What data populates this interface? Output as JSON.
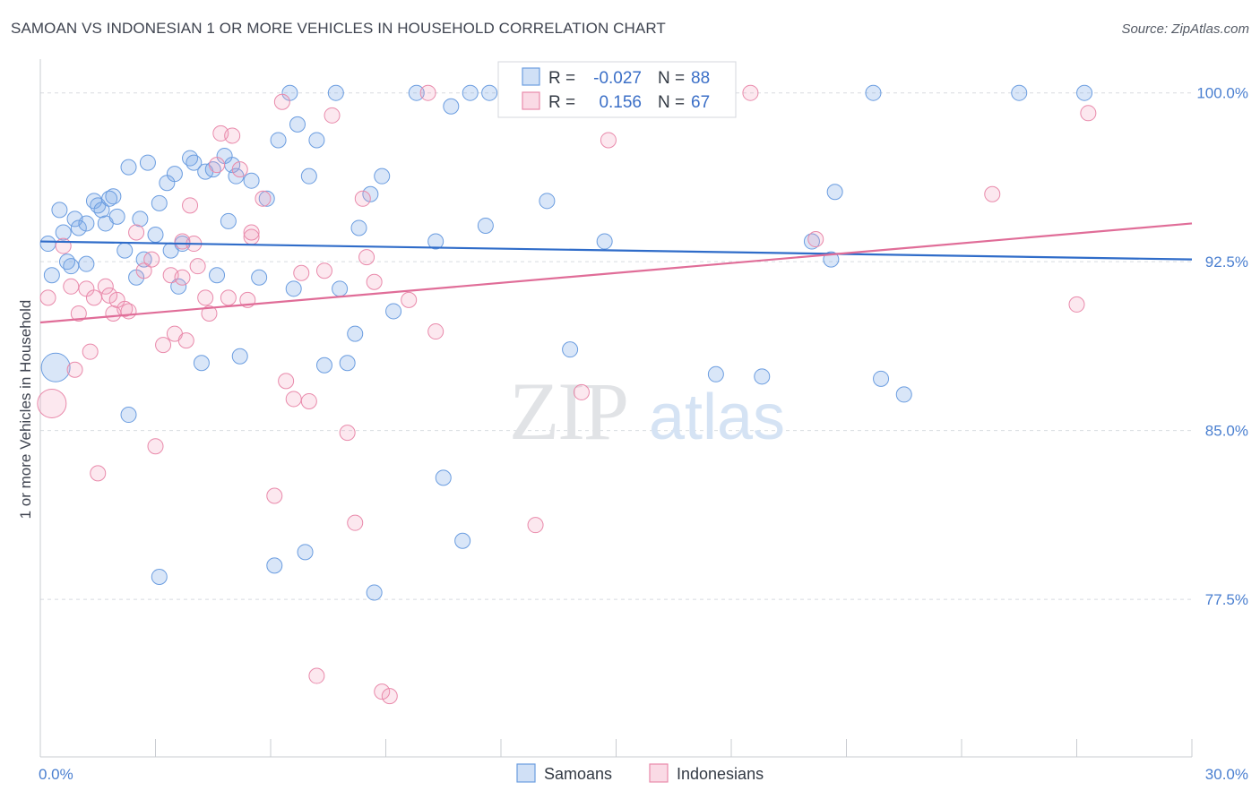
{
  "header": {
    "title": "SAMOAN VS INDONESIAN 1 OR MORE VEHICLES IN HOUSEHOLD CORRELATION CHART",
    "source": "Source: ZipAtlas.com"
  },
  "colors": {
    "samoans": "#6b9de0",
    "samoans_fill": "rgba(120,165,230,0.28)",
    "samoans_line": "#2f6cc9",
    "indonesians": "#e98aab",
    "indonesians_fill": "rgba(240,150,180,0.22)",
    "indonesians_line": "#e06d98",
    "grid": "#d8dbe0",
    "tick_label": "#4a7fd0"
  },
  "watermark": {
    "zip": "ZIP",
    "atlas": "atlas"
  },
  "legend": {
    "r_label": "R =",
    "n_label": "N =",
    "rows": [
      {
        "series": "Samoans",
        "r": "-0.027",
        "n": "88"
      },
      {
        "series": "Indonesians",
        "r": "0.156",
        "n": "67"
      }
    ]
  },
  "chart_data": {
    "type": "scatter",
    "title": "SAMOAN VS INDONESIAN 1 OR MORE VEHICLES IN HOUSEHOLD CORRELATION CHART",
    "xlabel": "",
    "ylabel": "1 or more Vehicles in Household",
    "xlim": [
      0,
      30
    ],
    "ylim": [
      70.5,
      101.5
    ],
    "x_tick_labels": [
      {
        "value": 0,
        "label": "0.0%"
      },
      {
        "value": 30,
        "label": "30.0%"
      }
    ],
    "y_tick_labels": [
      {
        "value": 100,
        "label": "100.0%"
      },
      {
        "value": 92.5,
        "label": "92.5%"
      },
      {
        "value": 85,
        "label": "85.0%"
      },
      {
        "value": 77.5,
        "label": "77.5%"
      }
    ],
    "grid": "horizontal dashed",
    "legend_position": "top-center",
    "series": [
      {
        "name": "Samoans",
        "trend": {
          "x": [
            0,
            30
          ],
          "y": [
            93.4,
            92.6
          ]
        },
        "points": [
          [
            0.2,
            93.3
          ],
          [
            0.3,
            91.9
          ],
          [
            0.5,
            94.8
          ],
          [
            0.6,
            93.8
          ],
          [
            0.8,
            92.3
          ],
          [
            0.9,
            94.4
          ],
          [
            1.0,
            94.0
          ],
          [
            1.2,
            92.4
          ],
          [
            1.2,
            94.2
          ],
          [
            1.4,
            95.2
          ],
          [
            1.5,
            95.0
          ],
          [
            1.6,
            94.8
          ],
          [
            1.7,
            94.2
          ],
          [
            1.8,
            95.3
          ],
          [
            1.9,
            95.4
          ],
          [
            2.0,
            94.5
          ],
          [
            2.2,
            93.0
          ],
          [
            2.3,
            96.7
          ],
          [
            2.5,
            91.8
          ],
          [
            2.6,
            94.4
          ],
          [
            2.7,
            92.6
          ],
          [
            2.8,
            96.9
          ],
          [
            3.0,
            93.7
          ],
          [
            3.1,
            95.1
          ],
          [
            3.3,
            96.0
          ],
          [
            3.4,
            93.0
          ],
          [
            3.5,
            96.4
          ],
          [
            3.6,
            91.4
          ],
          [
            3.7,
            93.3
          ],
          [
            3.9,
            97.1
          ],
          [
            4.0,
            96.9
          ],
          [
            4.2,
            88.0
          ],
          [
            4.3,
            96.5
          ],
          [
            4.5,
            96.6
          ],
          [
            4.6,
            91.9
          ],
          [
            4.8,
            97.2
          ],
          [
            4.9,
            94.3
          ],
          [
            5.0,
            96.8
          ],
          [
            5.1,
            96.3
          ],
          [
            5.2,
            88.3
          ],
          [
            5.5,
            96.1
          ],
          [
            5.7,
            91.8
          ],
          [
            5.9,
            95.3
          ],
          [
            6.1,
            79.0
          ],
          [
            6.2,
            97.9
          ],
          [
            6.5,
            100.0
          ],
          [
            6.6,
            91.3
          ],
          [
            6.7,
            98.6
          ],
          [
            6.9,
            79.6
          ],
          [
            7.0,
            96.3
          ],
          [
            7.2,
            97.9
          ],
          [
            7.4,
            87.9
          ],
          [
            7.7,
            100.0
          ],
          [
            7.8,
            91.3
          ],
          [
            8.0,
            88.0
          ],
          [
            8.2,
            89.3
          ],
          [
            8.3,
            94.0
          ],
          [
            8.6,
            95.5
          ],
          [
            8.7,
            77.8
          ],
          [
            8.9,
            96.3
          ],
          [
            9.2,
            90.3
          ],
          [
            9.8,
            100.0
          ],
          [
            10.3,
            93.4
          ],
          [
            10.5,
            82.9
          ],
          [
            10.7,
            99.4
          ],
          [
            11.0,
            80.1
          ],
          [
            11.2,
            100.0
          ],
          [
            11.6,
            94.1
          ],
          [
            11.7,
            100.0
          ],
          [
            12.7,
            100.0
          ],
          [
            13.2,
            95.2
          ],
          [
            13.8,
            88.6
          ],
          [
            14.2,
            100.0
          ],
          [
            14.7,
            93.4
          ],
          [
            15.0,
            100.0
          ],
          [
            15.3,
            100.0
          ],
          [
            17.6,
            87.5
          ],
          [
            18.8,
            87.4
          ],
          [
            20.1,
            93.4
          ],
          [
            20.6,
            92.6
          ],
          [
            20.7,
            95.6
          ],
          [
            21.7,
            100.0
          ],
          [
            21.9,
            87.3
          ],
          [
            22.5,
            86.6
          ],
          [
            25.5,
            100.0
          ],
          [
            27.2,
            100.0
          ],
          [
            0.4,
            87.8
          ],
          [
            0.7,
            92.5
          ],
          [
            3.1,
            78.5
          ],
          [
            2.3,
            85.7
          ]
        ]
      },
      {
        "name": "Indonesians",
        "trend": {
          "x": [
            0,
            30
          ],
          "y": [
            89.8,
            94.2
          ]
        },
        "points": [
          [
            0.2,
            90.9
          ],
          [
            0.3,
            86.2
          ],
          [
            0.6,
            93.2
          ],
          [
            0.8,
            91.4
          ],
          [
            1.0,
            90.2
          ],
          [
            1.2,
            91.3
          ],
          [
            1.4,
            90.9
          ],
          [
            1.5,
            83.1
          ],
          [
            1.7,
            91.4
          ],
          [
            1.8,
            91.0
          ],
          [
            1.9,
            90.2
          ],
          [
            2.0,
            90.8
          ],
          [
            2.2,
            90.4
          ],
          [
            2.3,
            90.3
          ],
          [
            2.5,
            93.8
          ],
          [
            2.7,
            92.1
          ],
          [
            2.9,
            92.6
          ],
          [
            3.0,
            84.3
          ],
          [
            3.2,
            88.8
          ],
          [
            3.4,
            91.9
          ],
          [
            3.5,
            89.3
          ],
          [
            3.7,
            93.4
          ],
          [
            3.8,
            89.0
          ],
          [
            3.9,
            95.0
          ],
          [
            4.0,
            93.3
          ],
          [
            4.1,
            92.3
          ],
          [
            4.3,
            90.9
          ],
          [
            4.4,
            90.2
          ],
          [
            4.6,
            96.8
          ],
          [
            4.7,
            98.2
          ],
          [
            4.9,
            90.9
          ],
          [
            5.0,
            98.1
          ],
          [
            5.2,
            96.6
          ],
          [
            5.4,
            90.8
          ],
          [
            5.5,
            93.6
          ],
          [
            5.8,
            95.3
          ],
          [
            6.1,
            82.1
          ],
          [
            6.3,
            99.6
          ],
          [
            6.4,
            87.2
          ],
          [
            6.6,
            86.4
          ],
          [
            6.8,
            92.0
          ],
          [
            7.0,
            86.3
          ],
          [
            7.2,
            74.1
          ],
          [
            7.4,
            92.1
          ],
          [
            7.6,
            99.0
          ],
          [
            8.0,
            84.9
          ],
          [
            8.2,
            80.9
          ],
          [
            8.4,
            95.3
          ],
          [
            8.5,
            92.7
          ],
          [
            8.7,
            91.6
          ],
          [
            8.9,
            73.4
          ],
          [
            9.1,
            73.2
          ],
          [
            9.6,
            90.8
          ],
          [
            10.1,
            100.0
          ],
          [
            10.3,
            89.4
          ],
          [
            12.9,
            80.8
          ],
          [
            14.1,
            86.7
          ],
          [
            14.8,
            97.9
          ],
          [
            18.5,
            100.0
          ],
          [
            20.2,
            93.5
          ],
          [
            24.8,
            95.5
          ],
          [
            27.0,
            90.6
          ],
          [
            27.3,
            99.1
          ],
          [
            0.9,
            87.7
          ],
          [
            1.3,
            88.5
          ],
          [
            3.7,
            91.8
          ],
          [
            5.5,
            93.8
          ]
        ]
      }
    ],
    "bottom_legend": [
      "Samoans",
      "Indonesians"
    ]
  }
}
